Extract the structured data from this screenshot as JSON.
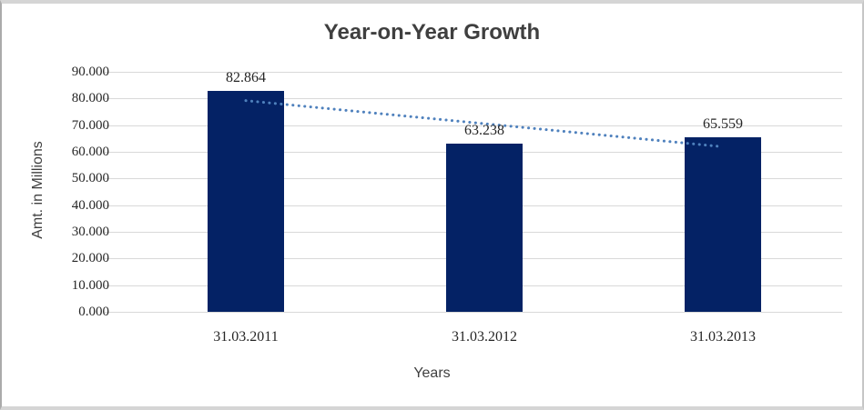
{
  "chart_data": {
    "type": "bar",
    "title": "Year-on-Year Growth",
    "xlabel": "Years",
    "ylabel": "Amt. in Millions",
    "categories": [
      "31.03.2011",
      "31.03.2012",
      "31.03.2013"
    ],
    "values": [
      82.864,
      63.238,
      65.559
    ],
    "data_labels": [
      "82.864",
      "63.238",
      "65.559"
    ],
    "ylim": [
      0,
      90
    ],
    "ytick_step": 10,
    "ytick_labels": [
      "0.000",
      "10.000",
      "20.000",
      "30.000",
      "40.000",
      "50.000",
      "60.000",
      "70.000",
      "80.000",
      "90.000"
    ],
    "grid": true,
    "legend": "none",
    "colors": {
      "bar": "#042265",
      "trendline": "#4f81bd",
      "gridline": "#d9d9d9",
      "title_text": "#3f3f3f",
      "tick_text": "#262626"
    },
    "trendline": {
      "type": "linear",
      "style": "dotted",
      "y_start": 79.2,
      "y_end": 61.9
    }
  }
}
